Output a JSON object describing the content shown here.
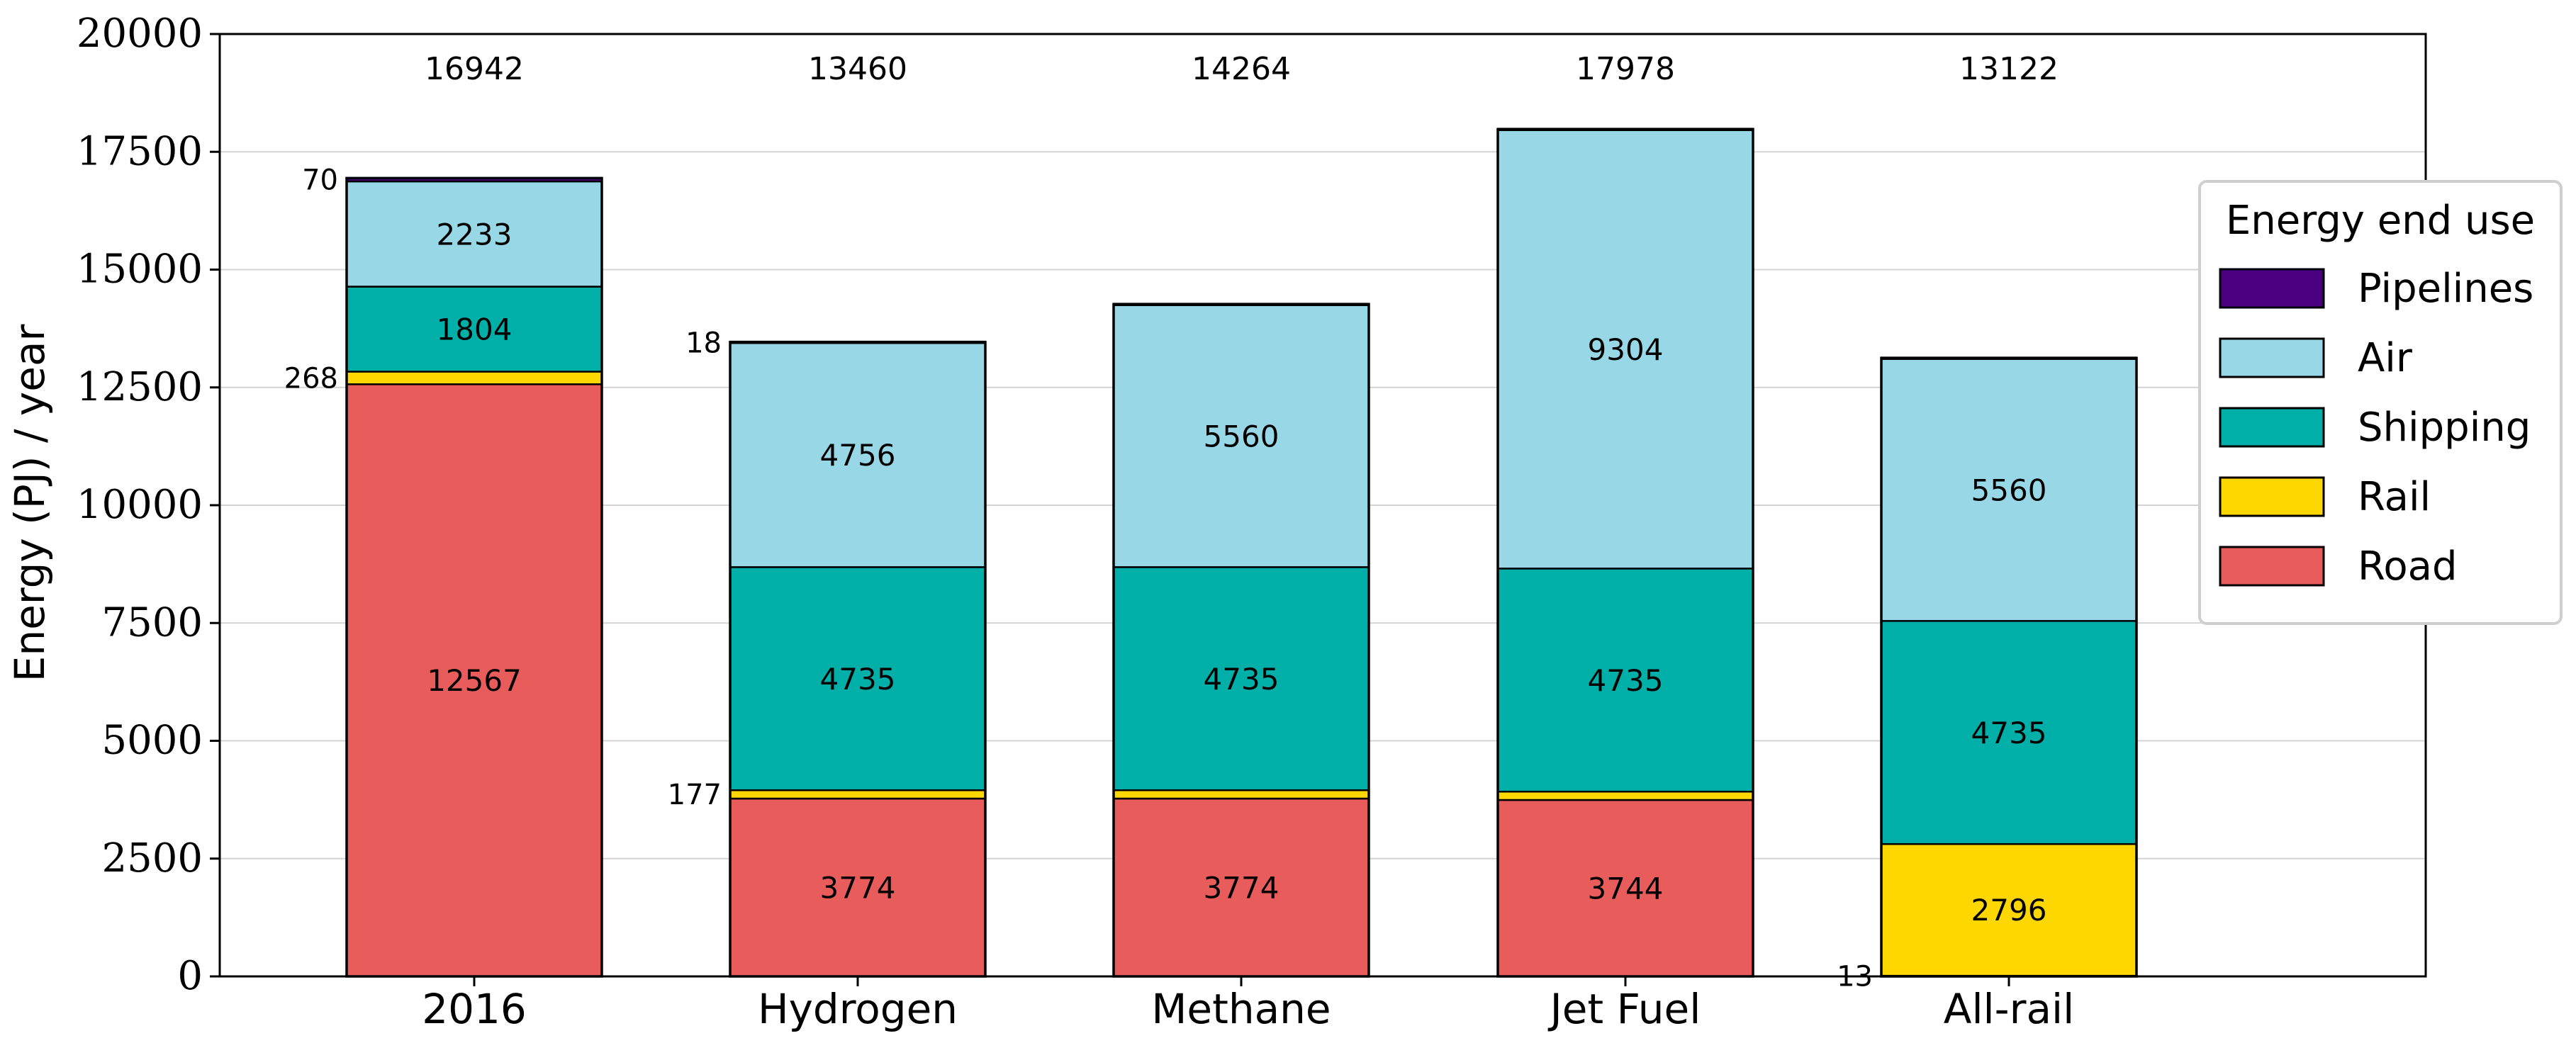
{
  "chart_data": {
    "type": "bar",
    "stacked": true,
    "title": "",
    "xlabel": "",
    "ylabel": "Energy (PJ) / year",
    "ylim": [
      0,
      20000
    ],
    "yticks": [
      0,
      2500,
      5000,
      7500,
      10000,
      12500,
      15000,
      17500,
      20000
    ],
    "grid": "horizontal",
    "categories": [
      "2016",
      "Hydrogen",
      "Methane",
      "Jet Fuel",
      "All-rail"
    ],
    "totals": [
      16942,
      13460,
      14264,
      17978,
      13122
    ],
    "series": [
      {
        "name": "Road",
        "color": "#e85c5c",
        "values": [
          12567,
          3774,
          3774,
          3744,
          13
        ]
      },
      {
        "name": "Rail",
        "color": "#ffd700",
        "values": [
          268,
          177,
          177,
          177,
          2796
        ]
      },
      {
        "name": "Shipping",
        "color": "#00b0a8",
        "values": [
          1804,
          4735,
          4735,
          4735,
          4735
        ]
      },
      {
        "name": "Air",
        "color": "#98d8e6",
        "values": [
          2233,
          4756,
          5560,
          9304,
          5560
        ]
      },
      {
        "name": "Pipelines",
        "color": "#4b0082",
        "values": [
          70,
          18,
          18,
          18,
          18
        ]
      }
    ],
    "labels": [
      {
        "category": "2016",
        "series": "Pipelines",
        "text": "70",
        "placement": "left"
      },
      {
        "category": "2016",
        "series": "Air",
        "text": "2233",
        "placement": "inside"
      },
      {
        "category": "2016",
        "series": "Shipping",
        "text": "1804",
        "placement": "inside"
      },
      {
        "category": "2016",
        "series": "Rail",
        "text": "268",
        "placement": "left"
      },
      {
        "category": "2016",
        "series": "Road",
        "text": "12567",
        "placement": "inside"
      },
      {
        "category": "Hydrogen",
        "series": "Pipelines",
        "text": "18",
        "placement": "left"
      },
      {
        "category": "Hydrogen",
        "series": "Air",
        "text": "4756",
        "placement": "inside"
      },
      {
        "category": "Hydrogen",
        "series": "Shipping",
        "text": "4735",
        "placement": "inside"
      },
      {
        "category": "Hydrogen",
        "series": "Rail",
        "text": "177",
        "placement": "left"
      },
      {
        "category": "Hydrogen",
        "series": "Road",
        "text": "3774",
        "placement": "inside"
      },
      {
        "category": "Methane",
        "series": "Air",
        "text": "5560",
        "placement": "inside"
      },
      {
        "category": "Methane",
        "series": "Shipping",
        "text": "4735",
        "placement": "inside"
      },
      {
        "category": "Methane",
        "series": "Road",
        "text": "3774",
        "placement": "inside"
      },
      {
        "category": "Jet Fuel",
        "series": "Air",
        "text": "9304",
        "placement": "inside"
      },
      {
        "category": "Jet Fuel",
        "series": "Shipping",
        "text": "4735",
        "placement": "inside"
      },
      {
        "category": "Jet Fuel",
        "series": "Road",
        "text": "3744",
        "placement": "inside"
      },
      {
        "category": "All-rail",
        "series": "Air",
        "text": "5560",
        "placement": "inside"
      },
      {
        "category": "All-rail",
        "series": "Shipping",
        "text": "4735",
        "placement": "inside"
      },
      {
        "category": "All-rail",
        "series": "Rail",
        "text": "2796",
        "placement": "inside"
      },
      {
        "category": "All-rail",
        "series": "Road",
        "text": "13",
        "placement": "left"
      }
    ],
    "legend": {
      "title": "Energy end use",
      "position": "right",
      "items": [
        "Pipelines",
        "Air",
        "Shipping",
        "Rail",
        "Road"
      ]
    }
  }
}
